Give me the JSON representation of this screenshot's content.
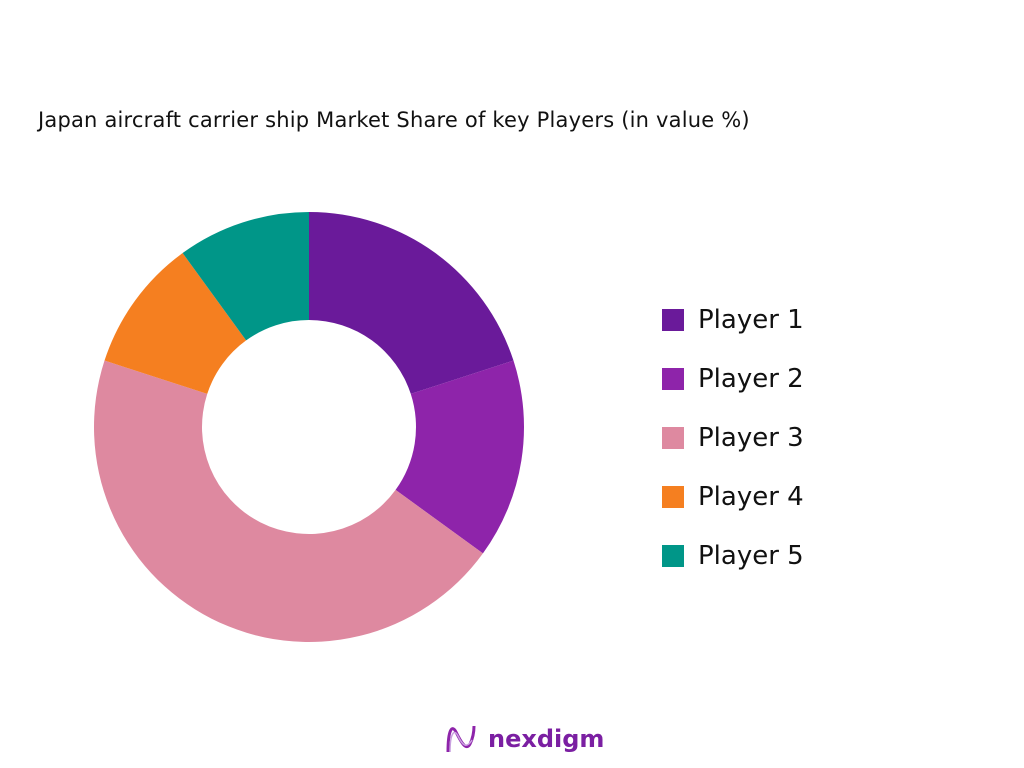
{
  "chart_data": {
    "type": "pie",
    "variant": "donut",
    "title": "Japan aircraft carrier ship Market Share of key Players (in value %)",
    "categories": [
      "Player 1",
      "Player 2",
      "Player 3",
      "Player 4",
      "Player 5"
    ],
    "values": [
      20,
      15,
      45,
      10,
      10
    ],
    "colors": [
      "#6a1a9a",
      "#8e24aa",
      "#de89a0",
      "#f57f20",
      "#009688"
    ],
    "legend_position": "right"
  },
  "logo": {
    "text": "nexdigm"
  }
}
